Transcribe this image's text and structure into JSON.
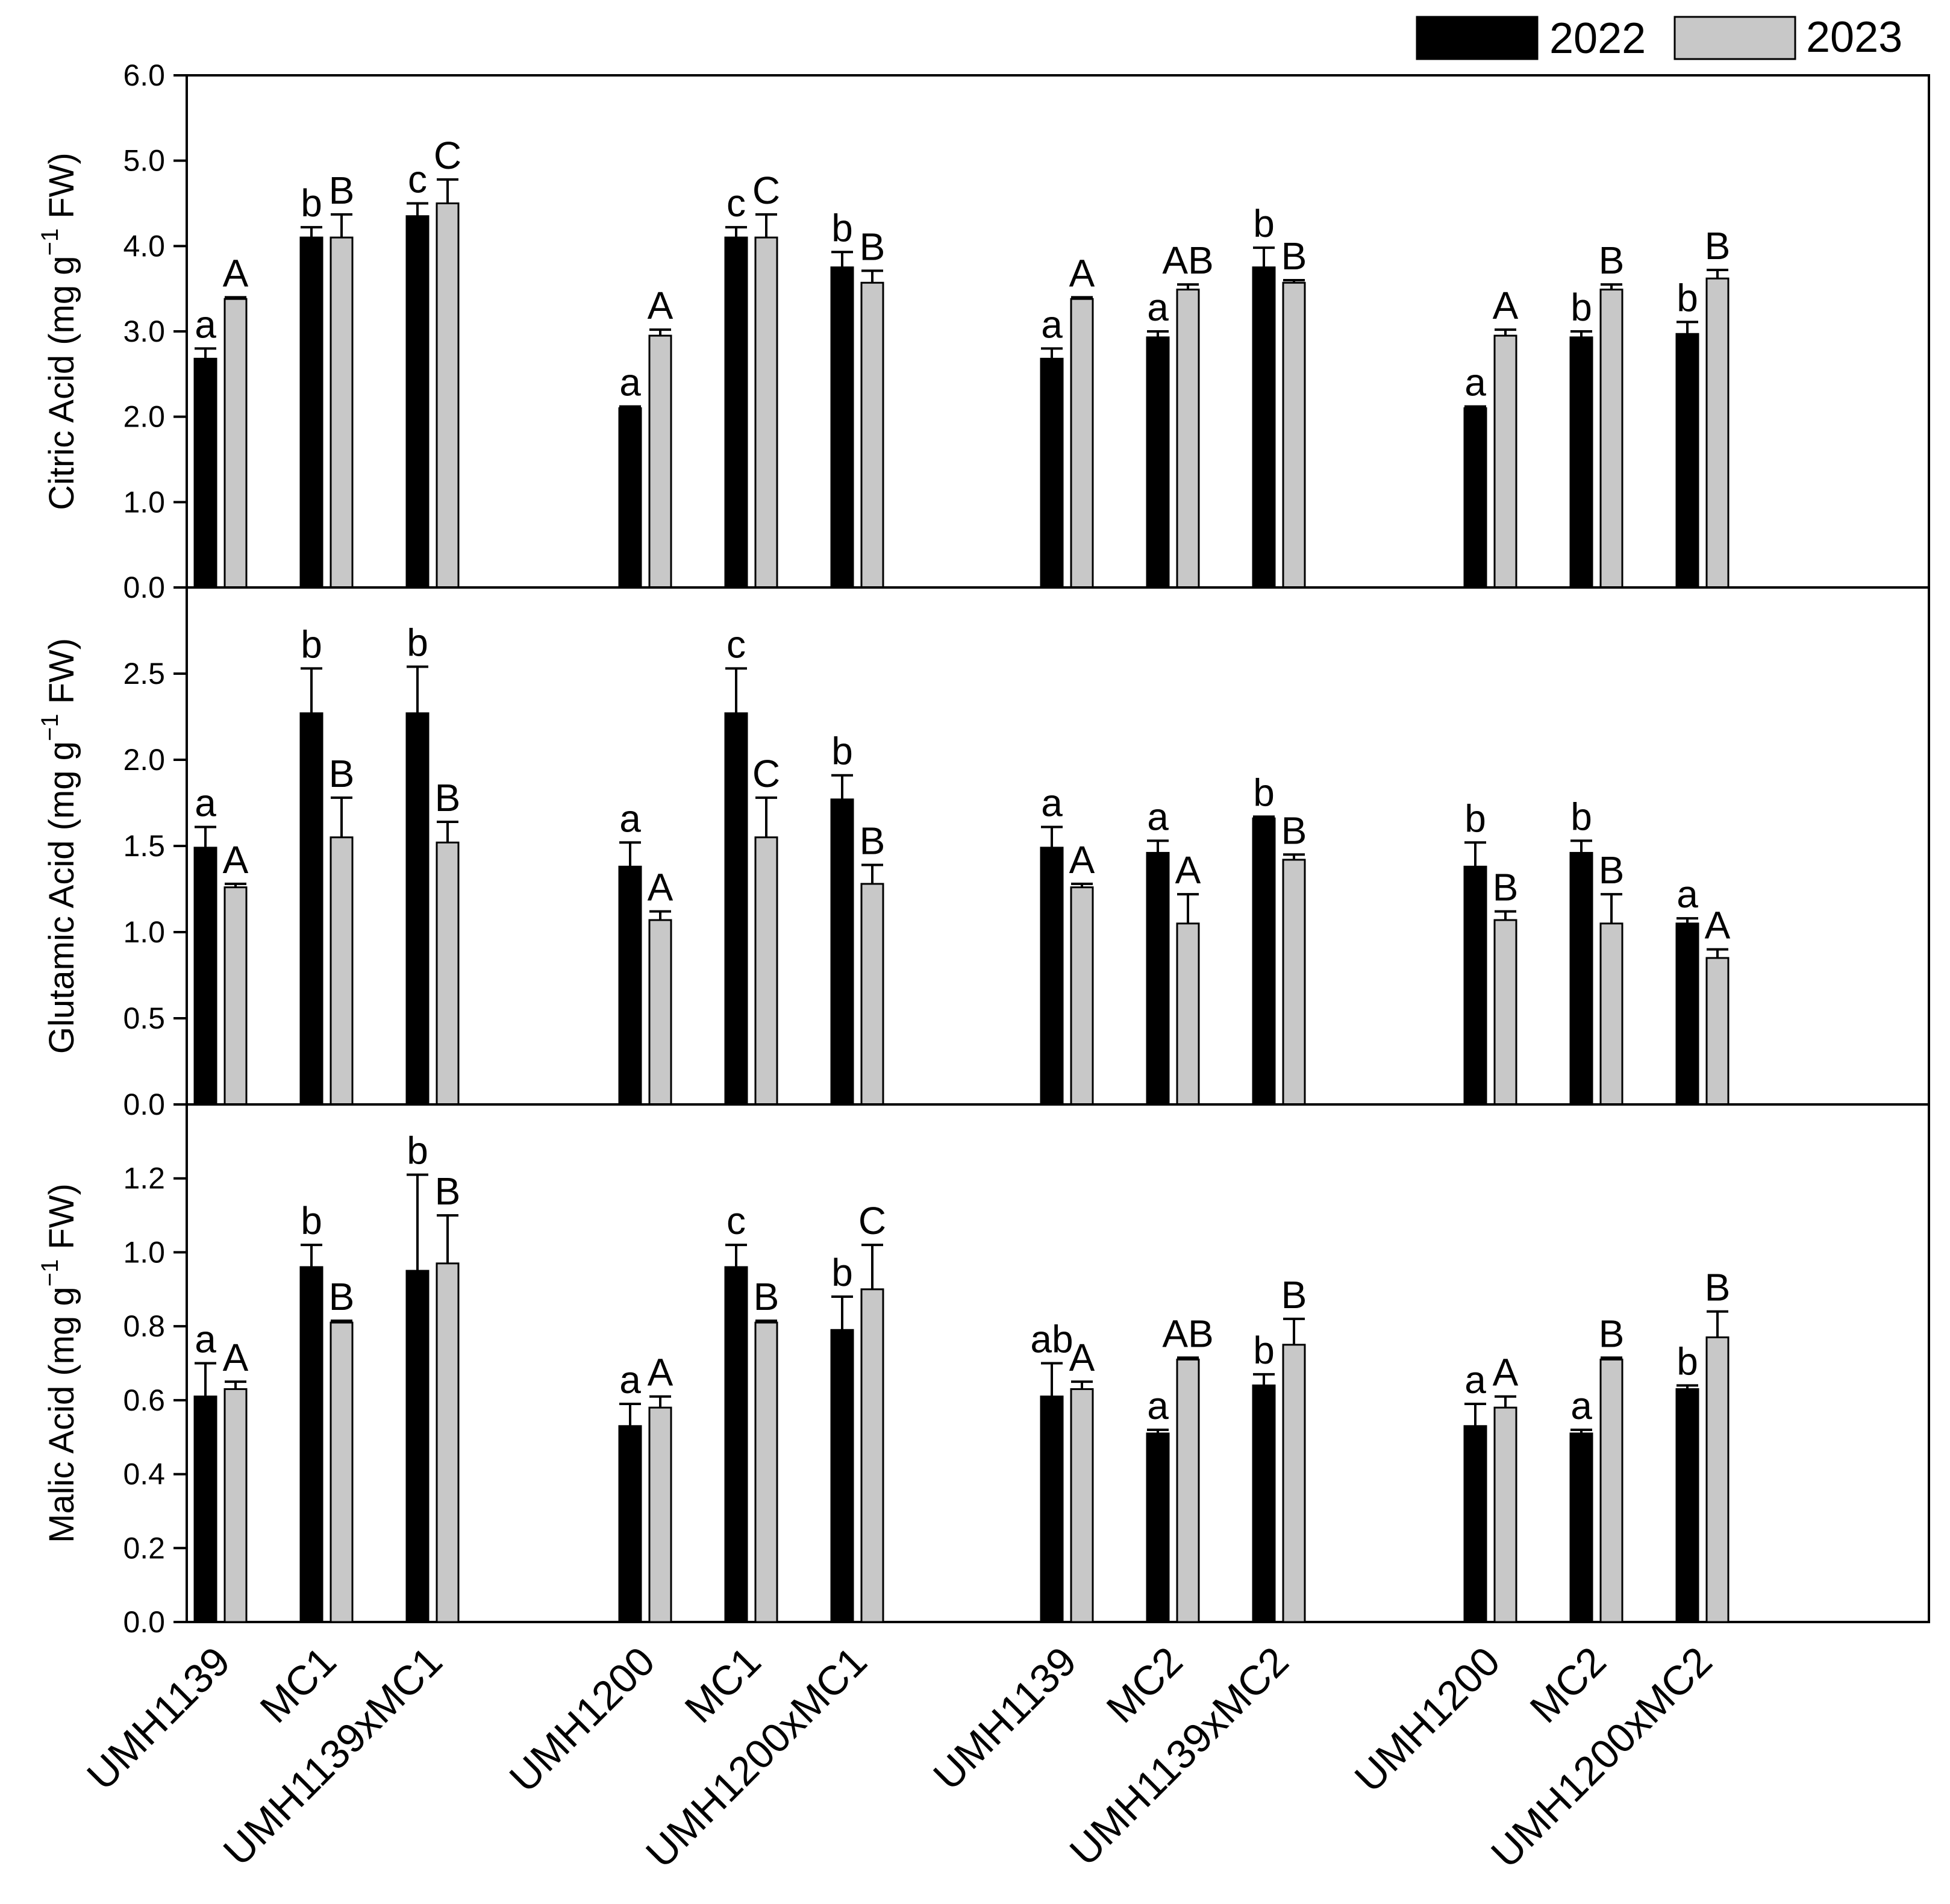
{
  "chart_data": {
    "type": "bar",
    "legend": {
      "placement": "top-right",
      "entries": [
        {
          "label": "2022",
          "color": "#000000"
        },
        {
          "label": "2023",
          "color": "#c8c8c8"
        }
      ]
    },
    "categories": [
      "UMH1139",
      "MC1",
      "UMH1139xMC1",
      "UMH1200",
      "MC1",
      "UMH1200xMC1",
      "UMH1139",
      "MC2",
      "UMH1139xMC2",
      "UMH1200",
      "MC2",
      "UMH1200xMC2"
    ],
    "panels": [
      {
        "ylabel_main": "Citric Acid (mg g",
        "ylabel_sup": "−1",
        "ylabel_tail": " FW)",
        "ylim": [
          0,
          6.0
        ],
        "ticks": [
          "0.0",
          "1.0",
          "2.0",
          "3.0",
          "4.0",
          "5.0",
          "6.0"
        ],
        "series": [
          {
            "name": "2022",
            "values": [
              2.68,
              4.1,
              4.35,
              2.1,
              4.1,
              3.75,
              2.68,
              2.93,
              3.75,
              2.1,
              2.93,
              2.97
            ],
            "errors": [
              0.12,
              0.12,
              0.15,
              0.02,
              0.12,
              0.18,
              0.12,
              0.07,
              0.23,
              0.02,
              0.07,
              0.14
            ],
            "letters": [
              "a",
              "b",
              "c",
              "a",
              "c",
              "b",
              "a",
              "a",
              "b",
              "a",
              "b",
              "b"
            ]
          },
          {
            "name": "2023",
            "values": [
              3.38,
              4.1,
              4.5,
              2.95,
              4.1,
              3.57,
              3.38,
              3.49,
              3.57,
              2.95,
              3.49,
              3.62
            ],
            "errors": [
              0.02,
              0.27,
              0.28,
              0.07,
              0.27,
              0.14,
              0.02,
              0.06,
              0.03,
              0.07,
              0.06,
              0.1
            ],
            "letters": [
              "A",
              "B",
              "C",
              "A",
              "C",
              "B",
              "A",
              "AB",
              "B",
              "A",
              "B",
              "B"
            ]
          }
        ]
      },
      {
        "ylabel_main": "Glutamic Acid (mg g",
        "ylabel_sup": "−1",
        "ylabel_tail": " FW)",
        "ylim": [
          0,
          3.0
        ],
        "ticks": [
          "0.0",
          "0.5",
          "1.0",
          "1.5",
          "2.0",
          "2.5"
        ],
        "series": [
          {
            "name": "2022",
            "values": [
              1.49,
              2.27,
              2.27,
              1.38,
              2.27,
              1.77,
              1.49,
              1.46,
              1.66,
              1.38,
              1.46,
              1.05
            ],
            "errors": [
              0.12,
              0.26,
              0.27,
              0.14,
              0.26,
              0.14,
              0.12,
              0.07,
              0.01,
              0.14,
              0.07,
              0.03
            ],
            "letters": [
              "a",
              "b",
              "b",
              "a",
              "c",
              "b",
              "a",
              "a",
              "b",
              "b",
              "b",
              "a"
            ]
          },
          {
            "name": "2023",
            "values": [
              1.26,
              1.55,
              1.52,
              1.07,
              1.55,
              1.28,
              1.26,
              1.05,
              1.42,
              1.07,
              1.05,
              0.85
            ],
            "errors": [
              0.02,
              0.23,
              0.12,
              0.05,
              0.23,
              0.11,
              0.02,
              0.17,
              0.03,
              0.05,
              0.17,
              0.05
            ],
            "letters": [
              "A",
              "B",
              "B",
              "A",
              "C",
              "B",
              "A",
              "A",
              "B",
              "B",
              "B",
              "A"
            ]
          }
        ]
      },
      {
        "ylabel_main": "Malic Acid (mg g",
        "ylabel_sup": "−1",
        "ylabel_tail": " FW)",
        "ylim": [
          0,
          1.4
        ],
        "ticks": [
          "0.0",
          "0.2",
          "0.4",
          "0.6",
          "0.8",
          "1.0",
          "1.2"
        ],
        "series": [
          {
            "name": "2022",
            "values": [
              0.61,
              0.96,
              0.95,
              0.53,
              0.96,
              0.79,
              0.61,
              0.51,
              0.64,
              0.53,
              0.51,
              0.63
            ],
            "errors": [
              0.09,
              0.06,
              0.26,
              0.06,
              0.06,
              0.09,
              0.09,
              0.01,
              0.03,
              0.06,
              0.01,
              0.01
            ],
            "letters": [
              "a",
              "b",
              "b",
              "a",
              "c",
              "b",
              "ab",
              "a",
              "b",
              "a",
              "a",
              "b"
            ]
          },
          {
            "name": "2023",
            "values": [
              0.63,
              0.81,
              0.97,
              0.58,
              0.81,
              0.9,
              0.63,
              0.71,
              0.75,
              0.58,
              0.71,
              0.77
            ],
            "errors": [
              0.02,
              0.005,
              0.13,
              0.03,
              0.005,
              0.12,
              0.02,
              0.005,
              0.07,
              0.03,
              0.005,
              0.07
            ],
            "letters": [
              "A",
              "B",
              "B",
              "A",
              "B",
              "C",
              "A",
              "AB",
              "B",
              "A",
              "B",
              "B"
            ]
          }
        ]
      }
    ]
  }
}
